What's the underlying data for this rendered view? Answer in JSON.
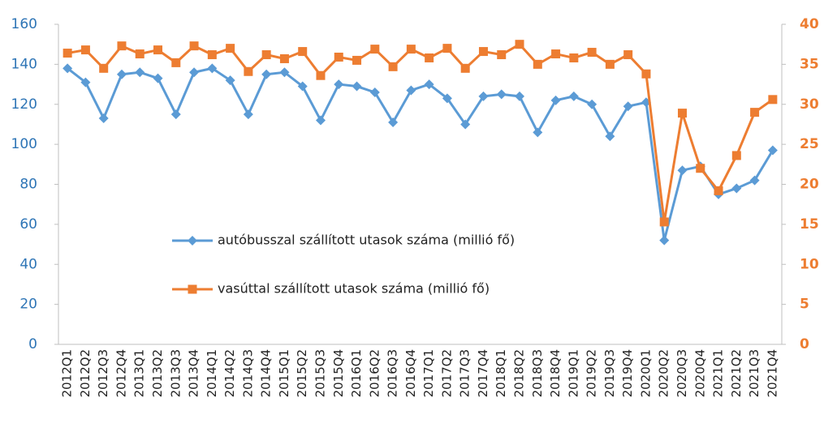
{
  "chart_data": {
    "type": "line",
    "categories": [
      "2012Q1",
      "2012Q2",
      "2012Q3",
      "2012Q4",
      "2013Q1",
      "2013Q2",
      "2013Q3",
      "2013Q4",
      "2014Q1",
      "2014Q2",
      "2014Q3",
      "2014Q4",
      "2015Q1",
      "2015Q2",
      "2015Q3",
      "2015Q4",
      "2016Q1",
      "2016Q2",
      "2016Q3",
      "2016Q4",
      "2017Q1",
      "2017Q2",
      "2017Q3",
      "2017Q4",
      "2018Q1",
      "2018Q2",
      "2018Q3",
      "2018Q4",
      "2019Q1",
      "2019Q2",
      "2019Q3",
      "2019Q4",
      "2020Q1",
      "2020Q2",
      "2020Q3",
      "2020Q4",
      "2021Q1",
      "2021Q2",
      "2021Q3",
      "2021Q4"
    ],
    "series": [
      {
        "name": "autóbusszal szállított utasok száma (millió fő)",
        "color": "#5b9bd5",
        "marker": "diamond",
        "values": [
          138,
          131,
          113,
          135,
          136,
          133,
          115,
          136,
          138,
          132,
          115,
          135,
          136,
          129,
          112,
          130,
          129,
          126,
          111,
          127,
          130,
          123,
          110,
          124,
          125,
          124,
          106,
          122,
          124,
          120,
          104,
          119,
          121,
          52,
          87,
          89,
          75,
          78,
          82,
          97
        ]
      },
      {
        "name": "vasúttal szállított utasok száma (millió fő)",
        "color": "#ed7d31",
        "marker": "square",
        "axis": "y2",
        "values": [
          36.4,
          36.8,
          34.5,
          37.3,
          36.3,
          36.8,
          35.2,
          37.3,
          36.2,
          37.0,
          34.1,
          36.2,
          35.7,
          36.6,
          33.6,
          35.9,
          35.5,
          36.9,
          34.7,
          36.9,
          35.8,
          37.0,
          34.5,
          36.6,
          36.2,
          37.5,
          35.0,
          36.3,
          35.8,
          36.5,
          35.0,
          36.2,
          33.8,
          15.3,
          28.9,
          22.0,
          19.2,
          23.6,
          29.0,
          30.6
        ]
      }
    ],
    "ylim": [
      0,
      160
    ],
    "yticks": [
      0,
      20,
      40,
      60,
      80,
      100,
      120,
      140,
      160
    ],
    "y2lim": [
      0,
      40
    ],
    "y2ticks": [
      0,
      5,
      10,
      15,
      20,
      25,
      30,
      35,
      40
    ],
    "grid": false,
    "legend": "center"
  }
}
